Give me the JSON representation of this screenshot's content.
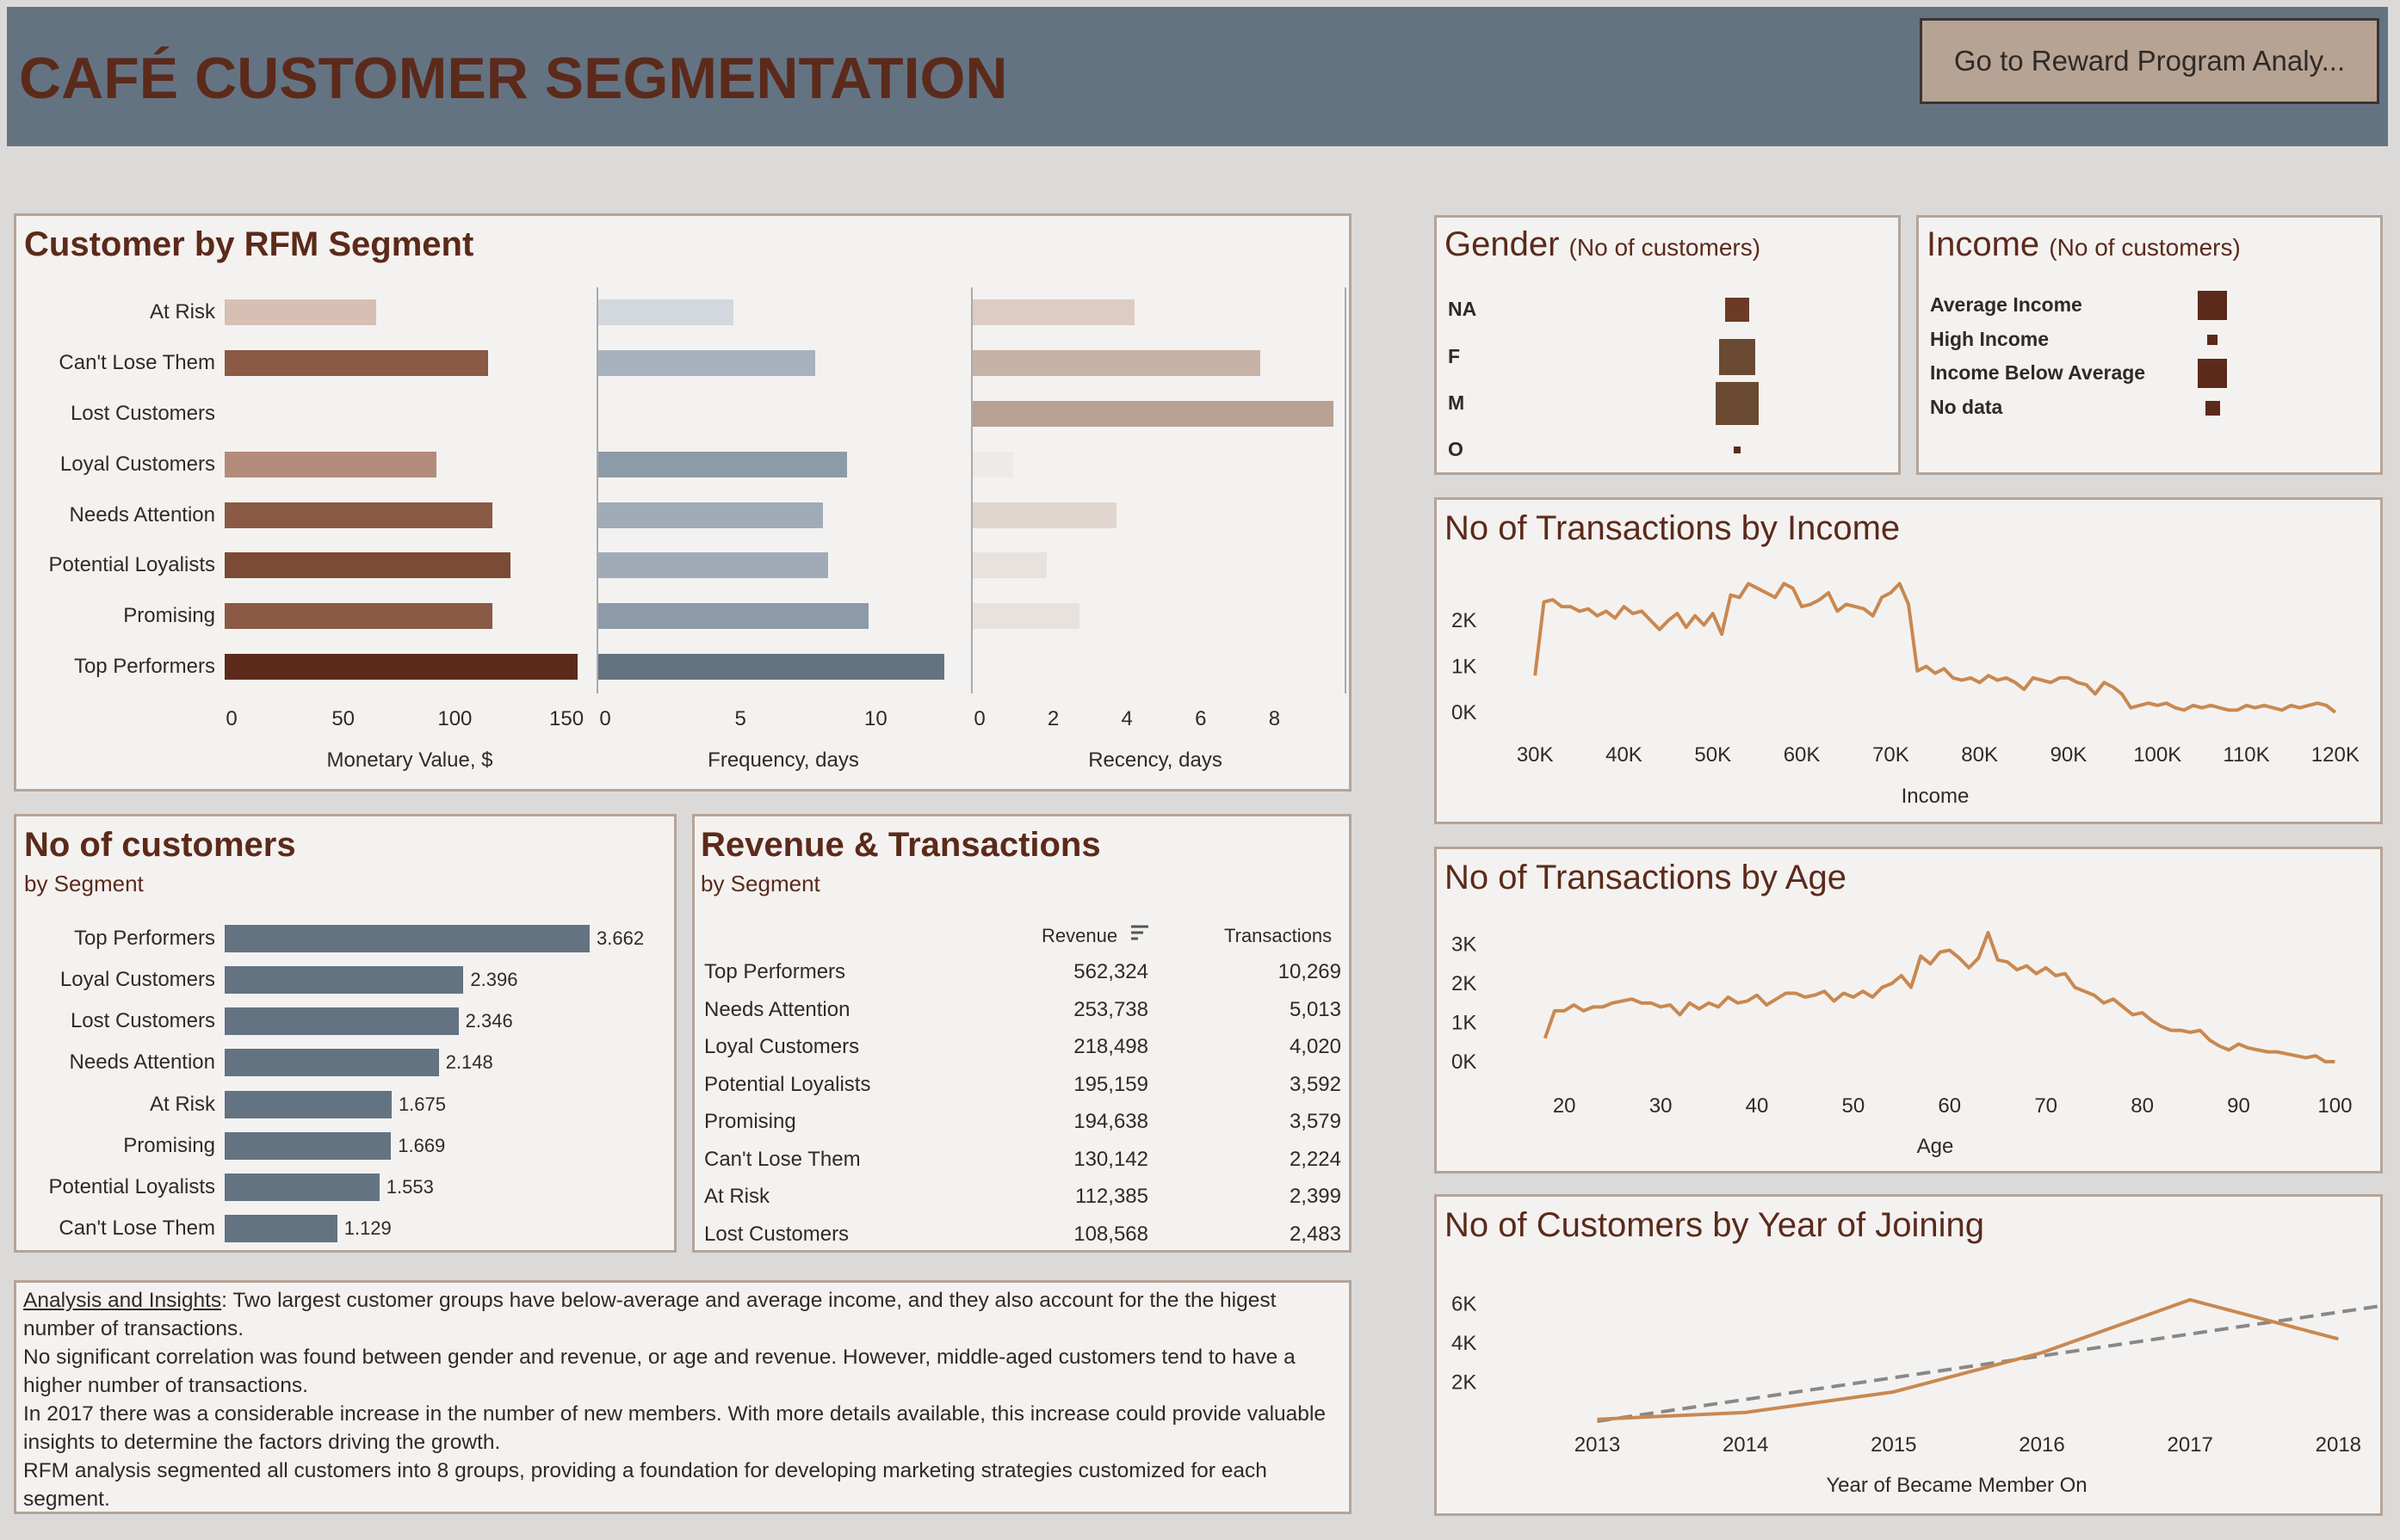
{
  "header": {
    "title": "CAFÉ CUSTOMER SEGMENTATION",
    "nav_button": "Go to Reward Program Analy..."
  },
  "colors": {
    "header_bg": "#647382",
    "title": "#5b2a1b",
    "line": "#c98850",
    "panel_bg": "#f4f2f0",
    "panel_border": "#b5a498"
  },
  "rfm": {
    "title": "Customer by RFM Segment",
    "chart_data": {
      "type": "bar",
      "categories": [
        "At Risk",
        "Can't Lose Them",
        "Lost Customers",
        "Loyal Customers",
        "Needs Attention",
        "Potential Loyalists",
        "Promising",
        "Top Performers"
      ],
      "series": [
        {
          "name": "Monetary Value, $",
          "values": [
            68,
            118,
            null,
            95,
            120,
            128,
            120,
            158
          ],
          "colors": [
            "#d7bfb4",
            "#8a5a45",
            "#ffffff",
            "#b38b7a",
            "#8a5a45",
            "#7c4a35",
            "#8a5a45",
            "#5b2a1b"
          ]
        },
        {
          "name": "Frequency, days",
          "values": [
            5,
            8,
            null,
            9.2,
            8.3,
            8.5,
            10,
            12.8
          ],
          "colors": [
            "#d3d8de",
            "#a8b2bd",
            "#ffffff",
            "#8d9aa8",
            "#a0abb7",
            "#a0abb7",
            "#8d9aa8",
            "#647382"
          ]
        },
        {
          "name": "Recency, days",
          "values": [
            4.4,
            7.8,
            9.8,
            1.1,
            3.9,
            2.0,
            2.9,
            null
          ],
          "colors": [
            "#dcccc3",
            "#c8b2a5",
            "#b8a093",
            "#eeeae8",
            "#e0d5cf",
            "#e8e2df",
            "#e8e2df",
            "#ffffff"
          ]
        }
      ],
      "xlim": [
        [
          0,
          160
        ],
        [
          0,
          13.2
        ],
        [
          0,
          10
        ]
      ],
      "ticks": [
        [
          "0",
          "50",
          "100",
          "150"
        ],
        [
          "0",
          "5",
          "10"
        ],
        [
          "0",
          "2",
          "4",
          "6",
          "8"
        ]
      ],
      "tick_values": [
        [
          0,
          50,
          100,
          150
        ],
        [
          0,
          5,
          10
        ],
        [
          0,
          2,
          4,
          6,
          8
        ]
      ]
    }
  },
  "customers": {
    "title": "No of customers",
    "subtitle": "by Segment",
    "chart_data": {
      "type": "bar",
      "categories": [
        "Top Performers",
        "Loyal Customers",
        "Lost Customers",
        "Needs Attention",
        "At Risk",
        "Promising",
        "Potential Loyalists",
        "Can't Lose Them"
      ],
      "values": [
        3662,
        2396,
        2346,
        2148,
        1675,
        1669,
        1553,
        1129
      ],
      "labels": [
        "3.662",
        "2.396",
        "2.346",
        "2.148",
        "1.675",
        "1.669",
        "1.553",
        "1.129"
      ]
    }
  },
  "revenue": {
    "title": "Revenue & Transactions",
    "subtitle": "by Segment",
    "columns": [
      "Revenue",
      "Transactions"
    ],
    "chart_data": {
      "type": "table",
      "rows": [
        {
          "segment": "Top Performers",
          "revenue": "562,324",
          "transactions": "10,269"
        },
        {
          "segment": "Needs Attention",
          "revenue": "253,738",
          "transactions": "5,013"
        },
        {
          "segment": "Loyal Customers",
          "revenue": "218,498",
          "transactions": "4,020"
        },
        {
          "segment": "Potential Loyalists",
          "revenue": "195,159",
          "transactions": "3,592"
        },
        {
          "segment": "Promising",
          "revenue": "194,638",
          "transactions": "3,579"
        },
        {
          "segment": "Can't Lose Them",
          "revenue": "130,142",
          "transactions": "2,224"
        },
        {
          "segment": "At Risk",
          "revenue": "112,385",
          "transactions": "2,399"
        },
        {
          "segment": "Lost Customers",
          "revenue": "108,568",
          "transactions": "2,483"
        }
      ]
    }
  },
  "gender": {
    "title": "Gender",
    "subtitle": "(No of customers)",
    "chart_data": {
      "type": "scatter",
      "categories": [
        "NA",
        "F",
        "M",
        "O"
      ],
      "sizes": [
        0.55,
        0.85,
        1.0,
        0.15
      ]
    }
  },
  "income": {
    "title": "Income",
    "subtitle": "(No of customers)",
    "chart_data": {
      "type": "scatter",
      "categories": [
        "Average Income",
        "High Income",
        "Income Below Average",
        "No data"
      ],
      "sizes": [
        1.0,
        0.35,
        1.0,
        0.5
      ]
    }
  },
  "tx_income": {
    "title": "No of Transactions by Income",
    "chart_data": {
      "type": "line",
      "xlabel": "Income",
      "x": [
        30000,
        31000,
        32000,
        33000,
        34000,
        35000,
        36000,
        37000,
        38000,
        39000,
        40000,
        41000,
        42000,
        43000,
        44000,
        45000,
        46000,
        47000,
        48000,
        49000,
        50000,
        51000,
        52000,
        53000,
        54000,
        55000,
        56000,
        57000,
        58000,
        59000,
        60000,
        61000,
        62000,
        63000,
        64000,
        65000,
        66000,
        67000,
        68000,
        69000,
        70000,
        71000,
        72000,
        73000,
        74000,
        75000,
        76000,
        77000,
        78000,
        79000,
        80000,
        81000,
        82000,
        83000,
        84000,
        85000,
        86000,
        87000,
        88000,
        89000,
        90000,
        91000,
        92000,
        93000,
        94000,
        95000,
        96000,
        97000,
        98000,
        99000,
        100000,
        101000,
        102000,
        103000,
        104000,
        105000,
        106000,
        107000,
        108000,
        109000,
        110000,
        111000,
        112000,
        113000,
        114000,
        115000,
        116000,
        117000,
        118000,
        119000,
        120000
      ],
      "y": [
        800,
        2400,
        2450,
        2300,
        2300,
        2200,
        2250,
        2100,
        2200,
        2050,
        2300,
        2150,
        2200,
        2000,
        1800,
        2000,
        2150,
        1850,
        2100,
        1900,
        2150,
        1700,
        2550,
        2500,
        2800,
        2700,
        2600,
        2500,
        2800,
        2700,
        2300,
        2350,
        2450,
        2600,
        2200,
        2350,
        2300,
        2250,
        2100,
        2500,
        2600,
        2800,
        2350,
        900,
        1000,
        850,
        950,
        750,
        700,
        750,
        650,
        800,
        700,
        750,
        650,
        500,
        750,
        700,
        650,
        750,
        750,
        650,
        600,
        400,
        650,
        550,
        400,
        100,
        150,
        200,
        150,
        200,
        100,
        50,
        150,
        100,
        150,
        100,
        50,
        50,
        150,
        100,
        150,
        100,
        50,
        150,
        100,
        150,
        200,
        150,
        0
      ],
      "xticks": [
        "30K",
        "40K",
        "50K",
        "60K",
        "70K",
        "80K",
        "90K",
        "100K",
        "110K",
        "120K"
      ],
      "xtick_values": [
        30000,
        40000,
        50000,
        60000,
        70000,
        80000,
        90000,
        100000,
        110000,
        120000
      ],
      "yticks": [
        "0K",
        "1K",
        "2K"
      ],
      "ytick_values": [
        0,
        1000,
        2000
      ],
      "xlim": [
        29500,
        120500
      ],
      "ylim": [
        0,
        2900
      ]
    }
  },
  "tx_age": {
    "title": "No of Transactions by Age",
    "chart_data": {
      "type": "line",
      "xlabel": "Age",
      "x": [
        18,
        19,
        20,
        21,
        22,
        23,
        24,
        25,
        26,
        27,
        28,
        29,
        30,
        31,
        32,
        33,
        34,
        35,
        36,
        37,
        38,
        39,
        40,
        41,
        42,
        43,
        44,
        45,
        46,
        47,
        48,
        49,
        50,
        51,
        52,
        53,
        54,
        55,
        56,
        57,
        58,
        59,
        60,
        61,
        62,
        63,
        64,
        65,
        66,
        67,
        68,
        69,
        70,
        71,
        72,
        73,
        74,
        75,
        76,
        77,
        78,
        79,
        80,
        81,
        82,
        83,
        84,
        85,
        86,
        87,
        88,
        89,
        90,
        91,
        92,
        93,
        94,
        95,
        96,
        97,
        98,
        99,
        100
      ],
      "y": [
        600,
        1300,
        1300,
        1450,
        1300,
        1400,
        1400,
        1500,
        1550,
        1600,
        1500,
        1500,
        1400,
        1450,
        1200,
        1500,
        1350,
        1500,
        1400,
        1650,
        1500,
        1550,
        1700,
        1450,
        1600,
        1750,
        1750,
        1650,
        1700,
        1800,
        1550,
        1750,
        1650,
        1800,
        1650,
        1900,
        2000,
        2200,
        1900,
        2700,
        2500,
        2800,
        2850,
        2650,
        2400,
        2650,
        3300,
        2600,
        2550,
        2350,
        2450,
        2250,
        2400,
        2200,
        2250,
        1900,
        1800,
        1700,
        1500,
        1600,
        1400,
        1200,
        1250,
        1050,
        900,
        800,
        800,
        750,
        800,
        550,
        400,
        300,
        450,
        350,
        300,
        250,
        250,
        200,
        150,
        100,
        150,
        0,
        0
      ],
      "xticks": [
        "20",
        "30",
        "40",
        "50",
        "60",
        "70",
        "80",
        "90",
        "100"
      ],
      "xtick_values": [
        20,
        30,
        40,
        50,
        60,
        70,
        80,
        90,
        100
      ],
      "yticks": [
        "0K",
        "1K",
        "2K",
        "3K"
      ],
      "ytick_values": [
        0,
        1000,
        2000,
        3000
      ],
      "xlim": [
        16.5,
        100.5
      ],
      "ylim": [
        0,
        3300
      ]
    }
  },
  "year_join": {
    "title": "No of Customers by Year of Joining",
    "chart_data": {
      "type": "line",
      "xlabel": "Year of Became Member On",
      "x": [
        2013,
        2014,
        2015,
        2016,
        2017,
        2018
      ],
      "y": [
        100,
        450,
        1500,
        3500,
        6200,
        4200
      ],
      "trend": {
        "x": [
          2013,
          2018.3
        ],
        "y": [
          0,
          5900
        ]
      },
      "xticks": [
        "2013",
        "2014",
        "2015",
        "2016",
        "2017",
        "2018"
      ],
      "xtick_values": [
        2013,
        2014,
        2015,
        2016,
        2017,
        2018
      ],
      "yticks": [
        "2K",
        "4K",
        "6K"
      ],
      "ytick_values": [
        2000,
        4000,
        6000
      ],
      "xlim": [
        2012.55,
        2018.3
      ],
      "ylim": [
        0,
        7200
      ]
    }
  },
  "insights": {
    "heading": "Analysis and Insights",
    "lines": [
      ": Two largest  customer groups have below-average and average income, and they also account for the the higest number of transactions.",
      "No significant correlation was found between  gender and revenue, or age and revenue. However, middle-aged customers tend to have a higher number of transactions.",
      "In 2017 there was a considerable increase in the number of new members. With more details available, this increase could provide valuable insights to determine the factors driving the growth.",
      "RFM analysis segmented all customers into 8 groups, providing a foundation for developing marketing strategies customized for each segment."
    ]
  }
}
